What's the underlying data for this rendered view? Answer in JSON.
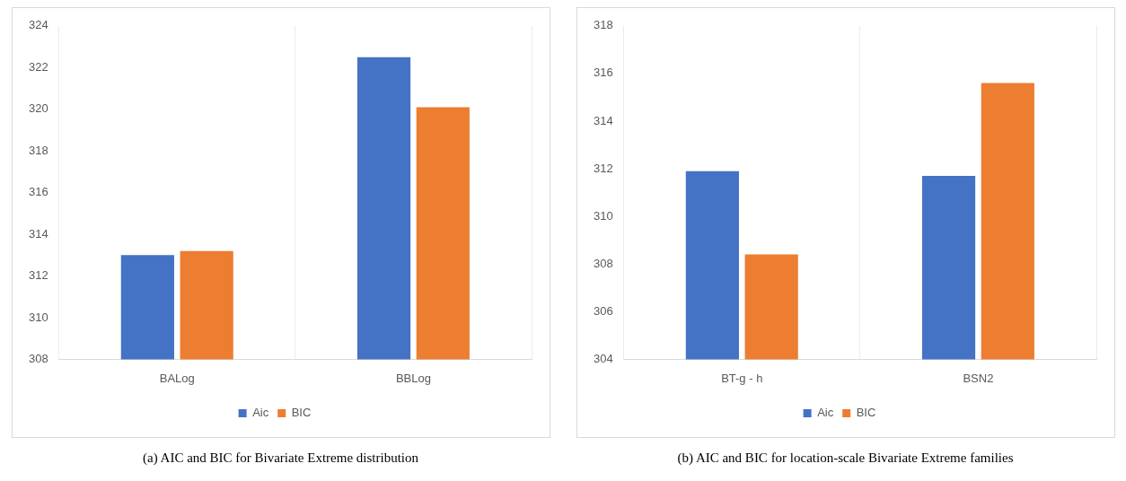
{
  "chart_data": [
    {
      "type": "bar",
      "categories": [
        "BALog",
        "BBLog"
      ],
      "series": [
        {
          "name": "Aic",
          "color": "#4472c4",
          "values": [
            313.0,
            322.5
          ]
        },
        {
          "name": "BIC",
          "color": "#ed7d31",
          "values": [
            313.2,
            320.1
          ]
        }
      ],
      "ylim": [
        308,
        324
      ],
      "yticks": [
        308,
        310,
        312,
        314,
        316,
        318,
        320,
        322,
        324
      ],
      "grid": "x",
      "legend": "bottom",
      "annotations": [
        "(a)  AIC and BIC for Bivariate Extreme distribution"
      ]
    },
    {
      "type": "bar",
      "categories": [
        "BT-g - h",
        "BSN2"
      ],
      "series": [
        {
          "name": "Aic",
          "color": "#4472c4",
          "values": [
            311.9,
            311.7
          ]
        },
        {
          "name": "BIC",
          "color": "#ed7d31",
          "values": [
            308.4,
            315.6
          ]
        }
      ],
      "ylim": [
        304,
        318
      ],
      "yticks": [
        304,
        306,
        308,
        310,
        312,
        314,
        316,
        318
      ],
      "grid": "x",
      "legend": "bottom",
      "annotations": [
        "(b)  AIC and BIC for location-scale Bivariate Extreme families"
      ]
    }
  ]
}
